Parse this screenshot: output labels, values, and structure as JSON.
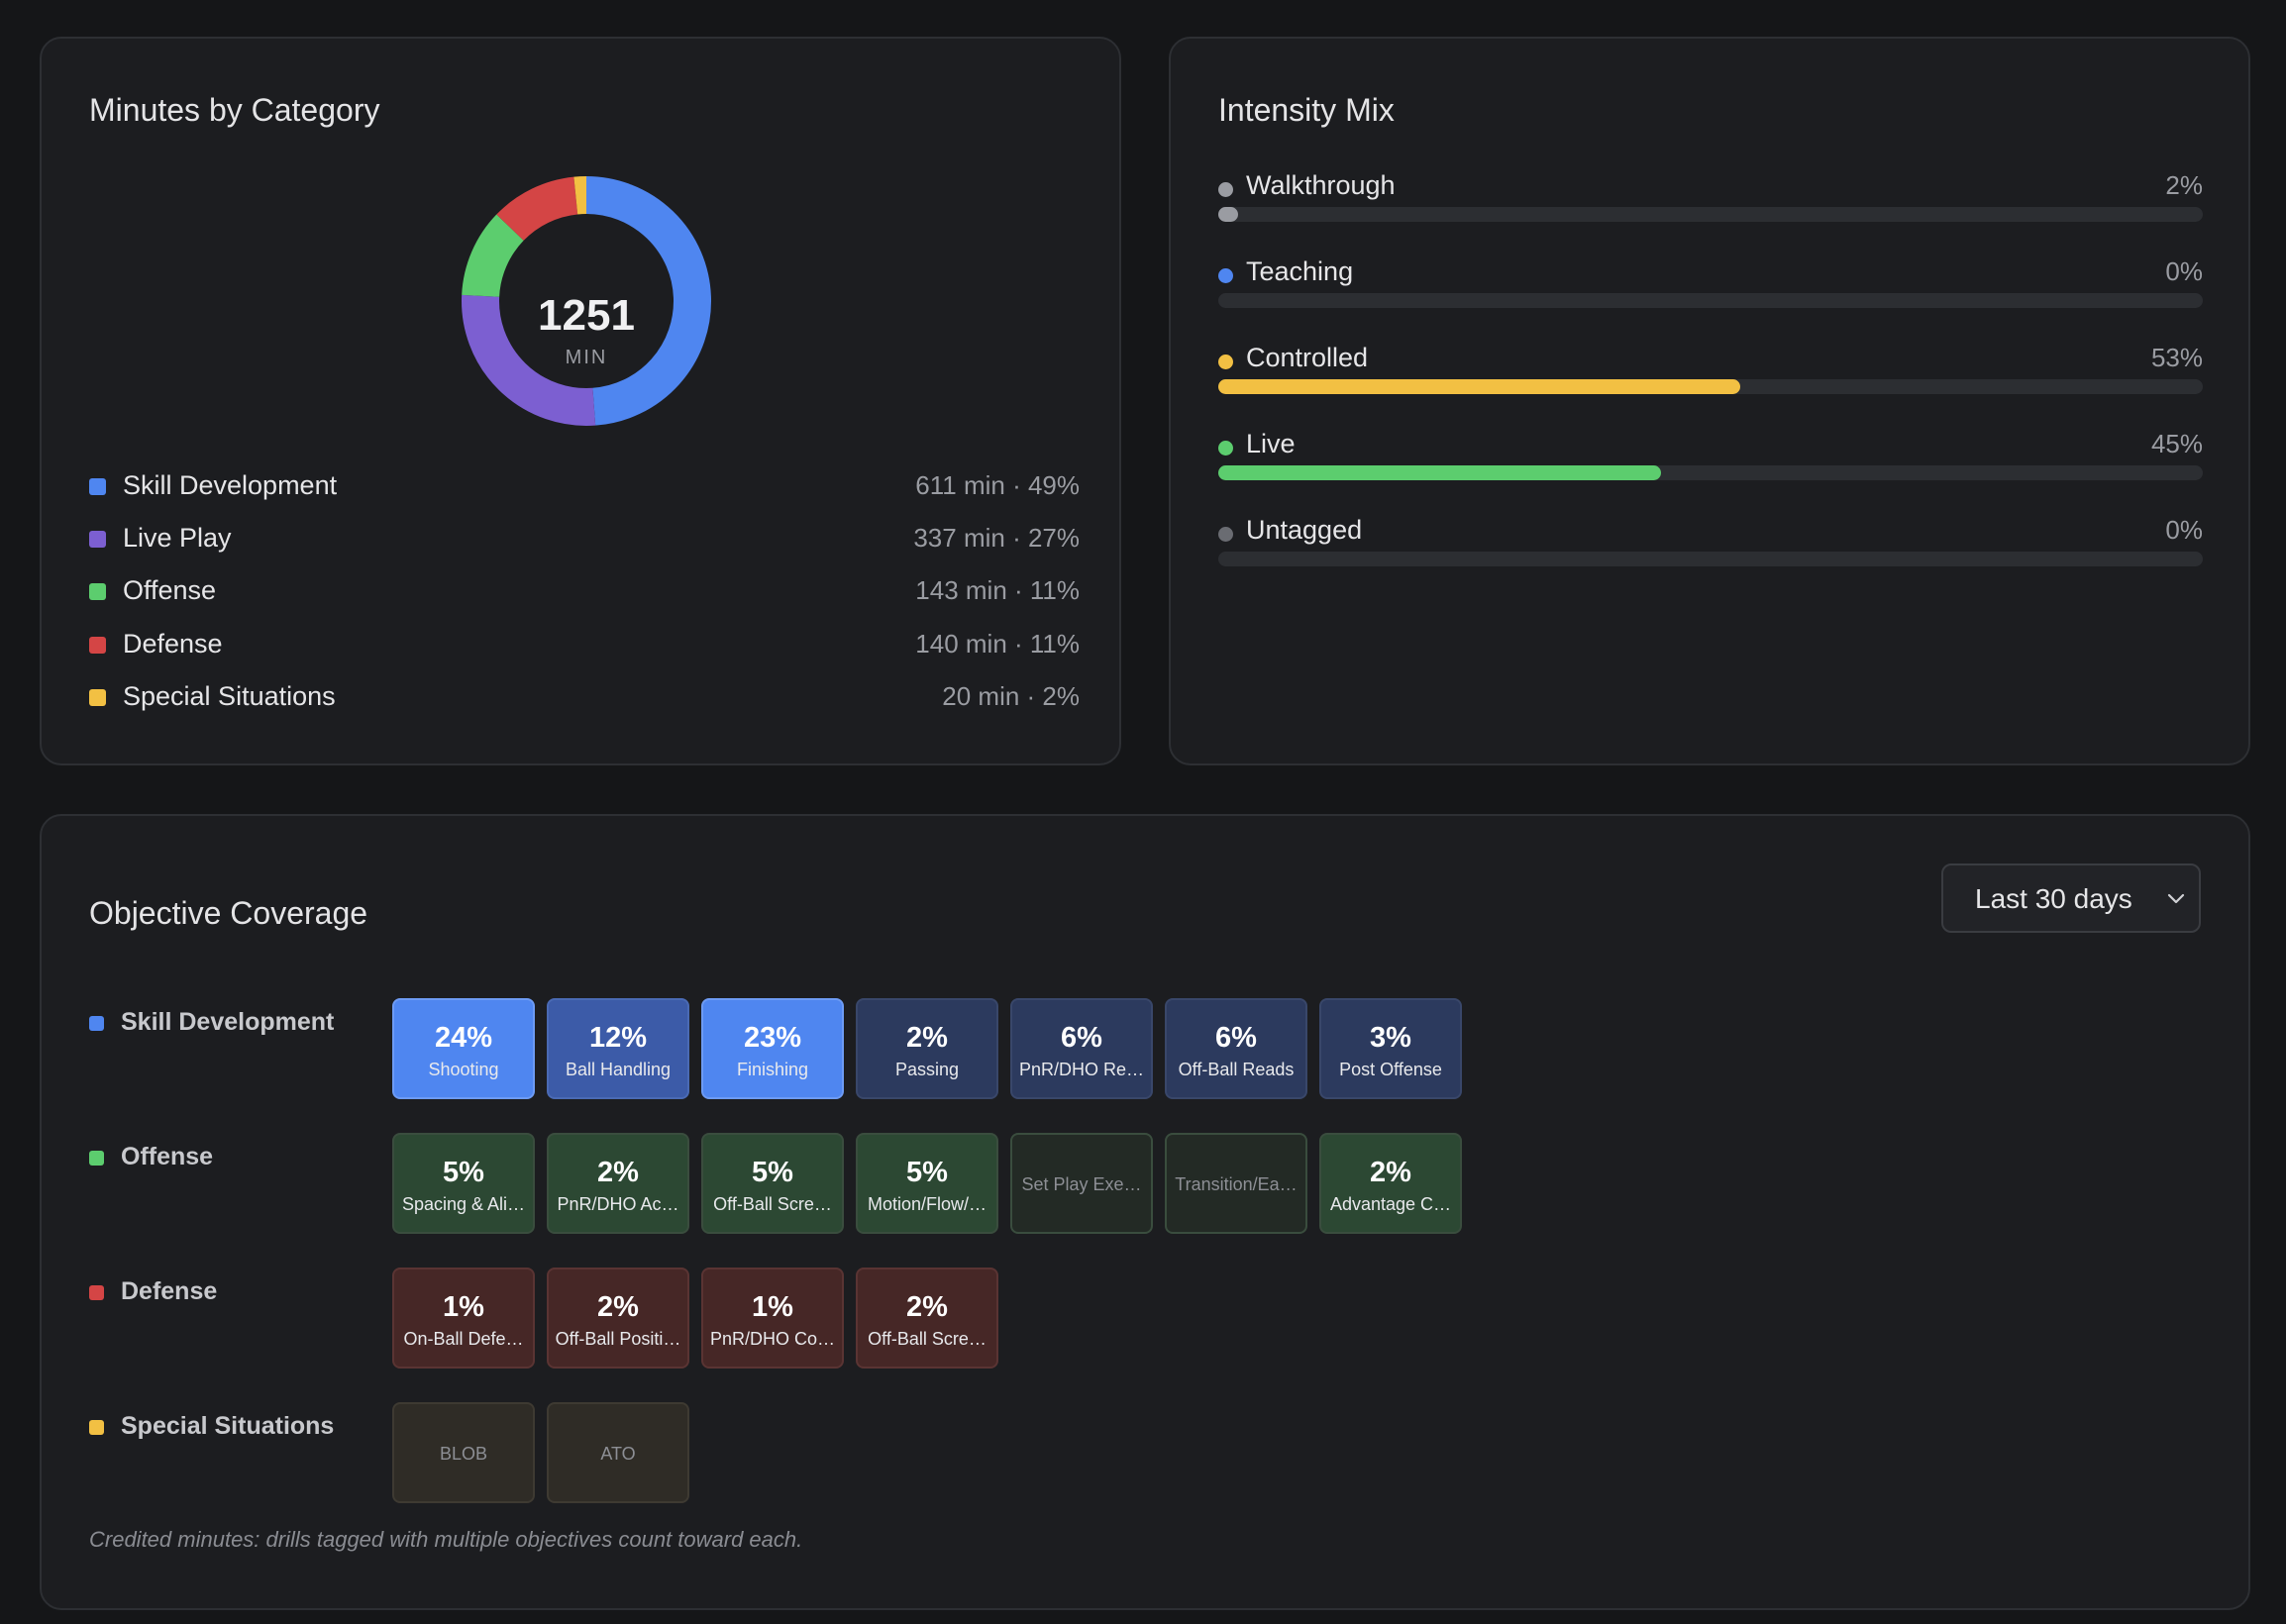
{
  "minutes_card": {
    "title": "Minutes by Category",
    "total": "1251",
    "unit": "MIN",
    "categories": [
      {
        "label": "Skill Development",
        "minutes": 611,
        "stat": "611 min · 49%",
        "color": "#4f86f0"
      },
      {
        "label": "Live Play",
        "minutes": 337,
        "stat": "337 min · 27%",
        "color": "#7c5fd1"
      },
      {
        "label": "Offense",
        "minutes": 143,
        "stat": "143 min · 11%",
        "color": "#5ccd6e"
      },
      {
        "label": "Defense",
        "minutes": 140,
        "stat": "140 min · 11%",
        "color": "#d44545"
      },
      {
        "label": "Special Situations",
        "minutes": 20,
        "stat": "20 min · 2%",
        "color": "#f2c043"
      }
    ]
  },
  "intensity_card": {
    "title": "Intensity Mix",
    "items": [
      {
        "label": "Walkthrough",
        "pct_text": "2%",
        "value": 2,
        "color": "#9a9ca2"
      },
      {
        "label": "Teaching",
        "pct_text": "0%",
        "value": 0,
        "color": "#4f86f0"
      },
      {
        "label": "Controlled",
        "pct_text": "53%",
        "value": 53,
        "color": "#f2c043"
      },
      {
        "label": "Live",
        "pct_text": "45%",
        "value": 45,
        "color": "#5ccd6e"
      },
      {
        "label": "Untagged",
        "pct_text": "0%",
        "value": 0,
        "color": "#6a6c72"
      }
    ]
  },
  "coverage_card": {
    "title": "Objective Coverage",
    "range_select": "Last 30 days",
    "footnote": "Credited minutes: drills tagged with multiple objectives count toward each.",
    "groups": [
      {
        "label": "Skill Development",
        "color": "#4f86f0",
        "tiles": [
          {
            "pct": "24%",
            "name": "Shooting",
            "level": "high"
          },
          {
            "pct": "12%",
            "name": "Ball Handling",
            "level": "mid"
          },
          {
            "pct": "23%",
            "name": "Finishing",
            "level": "high"
          },
          {
            "pct": "2%",
            "name": "Passing",
            "level": "low"
          },
          {
            "pct": "6%",
            "name": "PnR/DHO Re…",
            "level": "low"
          },
          {
            "pct": "6%",
            "name": "Off-Ball Reads",
            "level": "low"
          },
          {
            "pct": "3%",
            "name": "Post Offense",
            "level": "low"
          }
        ]
      },
      {
        "label": "Offense",
        "color": "#5ccd6e",
        "tiles": [
          {
            "pct": "5%",
            "name": "Spacing & Ali…",
            "level": "low"
          },
          {
            "pct": "2%",
            "name": "PnR/DHO Ac…",
            "level": "low"
          },
          {
            "pct": "5%",
            "name": "Off-Ball Scre…",
            "level": "low"
          },
          {
            "pct": "5%",
            "name": "Motion/Flow/…",
            "level": "low"
          },
          {
            "pct": "",
            "name": "Set Play Exe…",
            "level": "none"
          },
          {
            "pct": "",
            "name": "Transition/Ea…",
            "level": "none"
          },
          {
            "pct": "2%",
            "name": "Advantage C…",
            "level": "low"
          }
        ]
      },
      {
        "label": "Defense",
        "color": "#d44545",
        "tiles": [
          {
            "pct": "1%",
            "name": "On-Ball Defe…",
            "level": "low"
          },
          {
            "pct": "2%",
            "name": "Off-Ball Positi…",
            "level": "low"
          },
          {
            "pct": "1%",
            "name": "PnR/DHO Co…",
            "level": "low"
          },
          {
            "pct": "2%",
            "name": "Off-Ball Scre…",
            "level": "low"
          }
        ]
      },
      {
        "label": "Special Situations",
        "color": "#f2c043",
        "tiles": [
          {
            "pct": "",
            "name": "BLOB",
            "level": "none"
          },
          {
            "pct": "",
            "name": "ATO",
            "level": "none"
          }
        ]
      }
    ]
  }
}
